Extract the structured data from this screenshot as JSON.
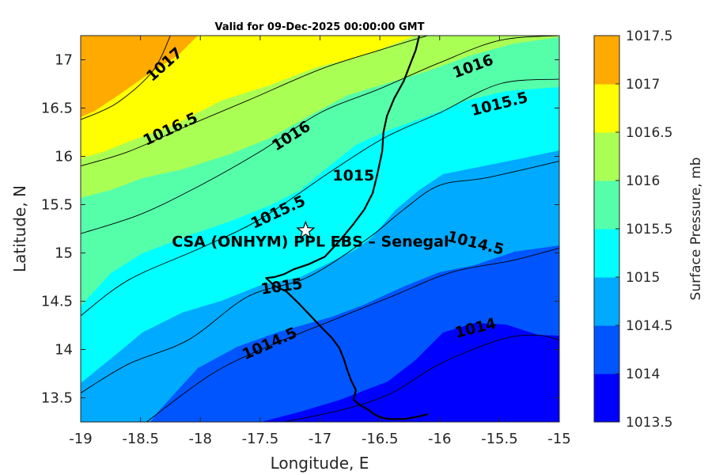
{
  "chart_data": {
    "type": "contour",
    "title": "Valid for 09-Dec-2025 00:00:00 GMT",
    "xlabel": "Longitude, E",
    "ylabel": "Latitude, N",
    "xlim": [
      -19,
      -15
    ],
    "ylim": [
      13.25,
      17.25
    ],
    "x_ticks": [
      "-19",
      "-18.5",
      "-18",
      "-17.5",
      "-17",
      "-16.5",
      "-16",
      "-15.5",
      "-15"
    ],
    "y_ticks": [
      "13.5",
      "14",
      "14.5",
      "15",
      "15.5",
      "16",
      "16.5",
      "17"
    ],
    "colorbar": {
      "label": "Surface Pressure, mb",
      "ticks": [
        "1013.5",
        "1014",
        "1014.5",
        "1015",
        "1015.5",
        "1016",
        "1016.5",
        "1017",
        "1017.5"
      ],
      "colors": [
        "#0000ff",
        "#0055ff",
        "#00aaff",
        "#00ffff",
        "#55ffaa",
        "#aaff55",
        "#ffff00",
        "#ffaa00",
        "#ff5500"
      ]
    },
    "contour_levels": [
      {
        "level": "1014",
        "lon": [
          -17.3,
          -16.8,
          -16.4,
          -16.0,
          -15.5,
          -15.2,
          -15.0
        ],
        "lat": [
          13.25,
          13.38,
          13.55,
          13.85,
          14.1,
          14.15,
          14.1
        ]
      },
      {
        "level": "1014.5",
        "lon": [
          -18.45,
          -17.9,
          -17.4,
          -16.9,
          -16.4,
          -15.9,
          -15.4,
          -15.0
        ],
        "lat": [
          13.25,
          13.75,
          14.05,
          14.3,
          14.55,
          14.8,
          14.92,
          15.05
        ]
      },
      {
        "level": "1015",
        "lon": [
          -19.0,
          -18.6,
          -18.1,
          -17.6,
          -17.1,
          -16.6,
          -16.3,
          -16.0,
          -15.6,
          -15.0
        ],
        "lat": [
          13.55,
          13.85,
          14.1,
          14.55,
          14.75,
          15.15,
          15.45,
          15.7,
          15.78,
          15.95
        ]
      },
      {
        "level": "1015.5",
        "lon": [
          -19.0,
          -18.6,
          -18.0,
          -17.5,
          -16.9,
          -16.45,
          -16.0,
          -15.5,
          -15.0
        ],
        "lat": [
          14.35,
          14.72,
          15.05,
          15.35,
          15.85,
          16.2,
          16.45,
          16.75,
          16.8
        ]
      },
      {
        "level": "1016",
        "lon": [
          -19.0,
          -18.5,
          -18.0,
          -17.5,
          -17.0,
          -16.5,
          -16.0,
          -15.5,
          -15.0
        ],
        "lat": [
          15.2,
          15.4,
          15.7,
          16.05,
          16.45,
          16.7,
          16.97,
          17.2,
          17.25
        ]
      },
      {
        "level": "1016.5",
        "lon": [
          -19.0,
          -18.6,
          -18.1,
          -17.6,
          -17.0,
          -16.5,
          -16.1
        ],
        "lat": [
          15.9,
          16.05,
          16.32,
          16.58,
          16.9,
          17.1,
          17.25
        ]
      },
      {
        "level": "1017",
        "lon": [
          -19.0,
          -18.7,
          -18.4,
          -18.25
        ],
        "lat": [
          16.38,
          16.55,
          16.88,
          17.25
        ]
      }
    ],
    "contour_labels": [
      {
        "text": "1017",
        "lon": -18.3,
        "lat": 16.95,
        "angle": -42
      },
      {
        "text": "1016.5",
        "lon": -18.25,
        "lat": 16.28,
        "angle": -25
      },
      {
        "text": "1016",
        "lon": -17.24,
        "lat": 16.21,
        "angle": -32
      },
      {
        "text": "1016",
        "lon": -15.72,
        "lat": 16.93,
        "angle": -20
      },
      {
        "text": "1015.5",
        "lon": -15.5,
        "lat": 16.54,
        "angle": -14
      },
      {
        "text": "1015.5",
        "lon": -17.35,
        "lat": 15.42,
        "angle": -25
      },
      {
        "text": "1015",
        "lon": -16.72,
        "lat": 15.8,
        "angle": 0
      },
      {
        "text": "1015",
        "lon": -17.32,
        "lat": 14.65,
        "angle": -8
      },
      {
        "text": "1014.5",
        "lon": -15.7,
        "lat": 15.1,
        "angle": 14
      },
      {
        "text": "1014.5",
        "lon": -17.42,
        "lat": 14.06,
        "angle": -24
      },
      {
        "text": "1014",
        "lon": -15.7,
        "lat": 14.22,
        "angle": -14
      }
    ],
    "site": {
      "name": "CSA (ONHYM) PPL EBS  – Senegal",
      "lon": -17.12,
      "lat": 15.23,
      "marker": "star"
    },
    "coastline": {
      "lon": [
        -16.17,
        -16.2,
        -16.25,
        -16.3,
        -16.38,
        -16.44,
        -16.47,
        -16.48,
        -16.52,
        -16.56,
        -16.63,
        -16.72,
        -16.84,
        -16.96,
        -17.1,
        -17.22,
        -17.3,
        -17.38,
        -17.45,
        -17.38,
        -17.28,
        -17.18,
        -17.08,
        -16.98,
        -16.9,
        -16.84,
        -16.8,
        -16.77,
        -16.74,
        -16.7,
        -16.72,
        -16.66,
        -16.6,
        -16.56,
        -16.5,
        -16.42,
        -16.3,
        -16.2,
        -16.1
      ],
      "lat": [
        17.25,
        17.1,
        16.94,
        16.78,
        16.6,
        16.42,
        16.25,
        16.05,
        15.82,
        15.62,
        15.45,
        15.3,
        15.12,
        14.96,
        14.88,
        14.83,
        14.78,
        14.75,
        14.74,
        14.66,
        14.6,
        14.48,
        14.35,
        14.22,
        14.12,
        14.02,
        13.9,
        13.78,
        13.68,
        13.58,
        13.48,
        13.42,
        13.38,
        13.34,
        13.3,
        13.28,
        13.28,
        13.3,
        13.33
      ]
    }
  }
}
